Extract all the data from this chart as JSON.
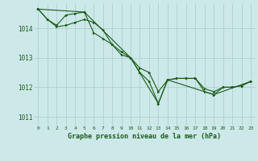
{
  "title": "Graphe pression niveau de la mer (hPa)",
  "background_color": "#cce8e8",
  "grid_color": "#aacaca",
  "line_color": "#1a5c1a",
  "xlim": [
    -0.5,
    23.5
  ],
  "ylim": [
    1010.7,
    1014.85
  ],
  "yticks": [
    1011,
    1012,
    1013,
    1014
  ],
  "xticks": [
    0,
    1,
    2,
    3,
    4,
    5,
    6,
    7,
    8,
    9,
    10,
    11,
    12,
    13,
    14,
    15,
    16,
    17,
    18,
    19,
    20,
    21,
    22,
    23
  ],
  "series1": {
    "x": [
      0,
      1,
      2,
      3,
      4,
      5,
      6,
      7,
      8,
      9,
      10,
      11,
      12,
      13,
      14,
      15,
      16,
      17,
      18,
      19,
      20,
      21,
      22,
      23
    ],
    "y": [
      1014.65,
      1014.3,
      1014.1,
      1014.45,
      1014.5,
      1014.55,
      1013.85,
      1013.65,
      1013.45,
      1013.2,
      1013.0,
      1012.5,
      1012.2,
      1011.45,
      1012.25,
      1012.3,
      1012.3,
      1012.3,
      1011.95,
      1011.85,
      1012.0,
      1012.0,
      1012.05,
      1012.2
    ]
  },
  "series2": {
    "x": [
      0,
      1,
      2,
      3,
      4,
      5,
      6,
      7,
      8,
      9,
      10,
      11,
      12,
      13,
      14,
      15,
      16,
      17,
      18,
      19,
      20,
      21,
      22,
      23
    ],
    "y": [
      1014.65,
      1014.3,
      1014.05,
      1014.1,
      1014.2,
      1014.3,
      1014.2,
      1013.95,
      1013.45,
      1013.1,
      1013.0,
      1012.65,
      1012.5,
      1011.85,
      1012.25,
      1012.3,
      1012.3,
      1012.3,
      1011.85,
      1011.75,
      1012.0,
      1012.0,
      1012.05,
      1012.2
    ]
  },
  "series3": {
    "x": [
      0,
      5,
      10,
      13,
      14,
      19,
      23
    ],
    "y": [
      1014.65,
      1014.55,
      1013.0,
      1011.45,
      1012.25,
      1011.75,
      1012.2
    ]
  }
}
